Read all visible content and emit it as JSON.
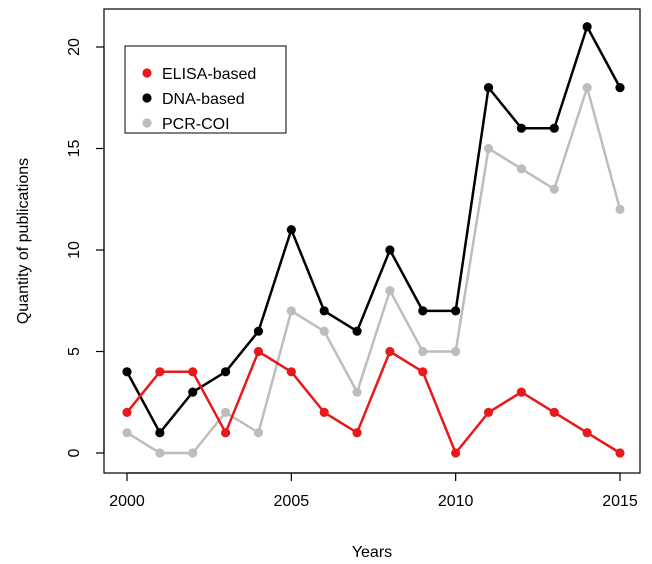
{
  "chart_data": {
    "type": "line",
    "title": "",
    "xlabel": "Years",
    "ylabel": "Quantity of publications",
    "xlim": [
      2000,
      2015
    ],
    "ylim": [
      0,
      21
    ],
    "x_ticks": [
      2000,
      2005,
      2010,
      2015
    ],
    "y_ticks": [
      0,
      5,
      10,
      15,
      20
    ],
    "grid": false,
    "legend_position": "top-left",
    "x": [
      2000,
      2001,
      2002,
      2003,
      2004,
      2005,
      2006,
      2007,
      2008,
      2009,
      2010,
      2011,
      2012,
      2013,
      2014,
      2015
    ],
    "series": [
      {
        "name": "ELISA-based",
        "color": "#e8191b",
        "values": [
          2,
          4,
          4,
          1,
          5,
          4,
          2,
          1,
          5,
          4,
          0,
          2,
          3,
          2,
          1,
          0
        ]
      },
      {
        "name": "DNA-based",
        "color": "#000000",
        "values": [
          4,
          1,
          3,
          4,
          6,
          11,
          7,
          6,
          10,
          7,
          7,
          18,
          16,
          16,
          21,
          18
        ]
      },
      {
        "name": "PCR-COI",
        "color": "#bdbdbd",
        "values": [
          1,
          0,
          0,
          2,
          1,
          7,
          6,
          3,
          8,
          5,
          5,
          15,
          14,
          13,
          18,
          12
        ]
      }
    ]
  }
}
